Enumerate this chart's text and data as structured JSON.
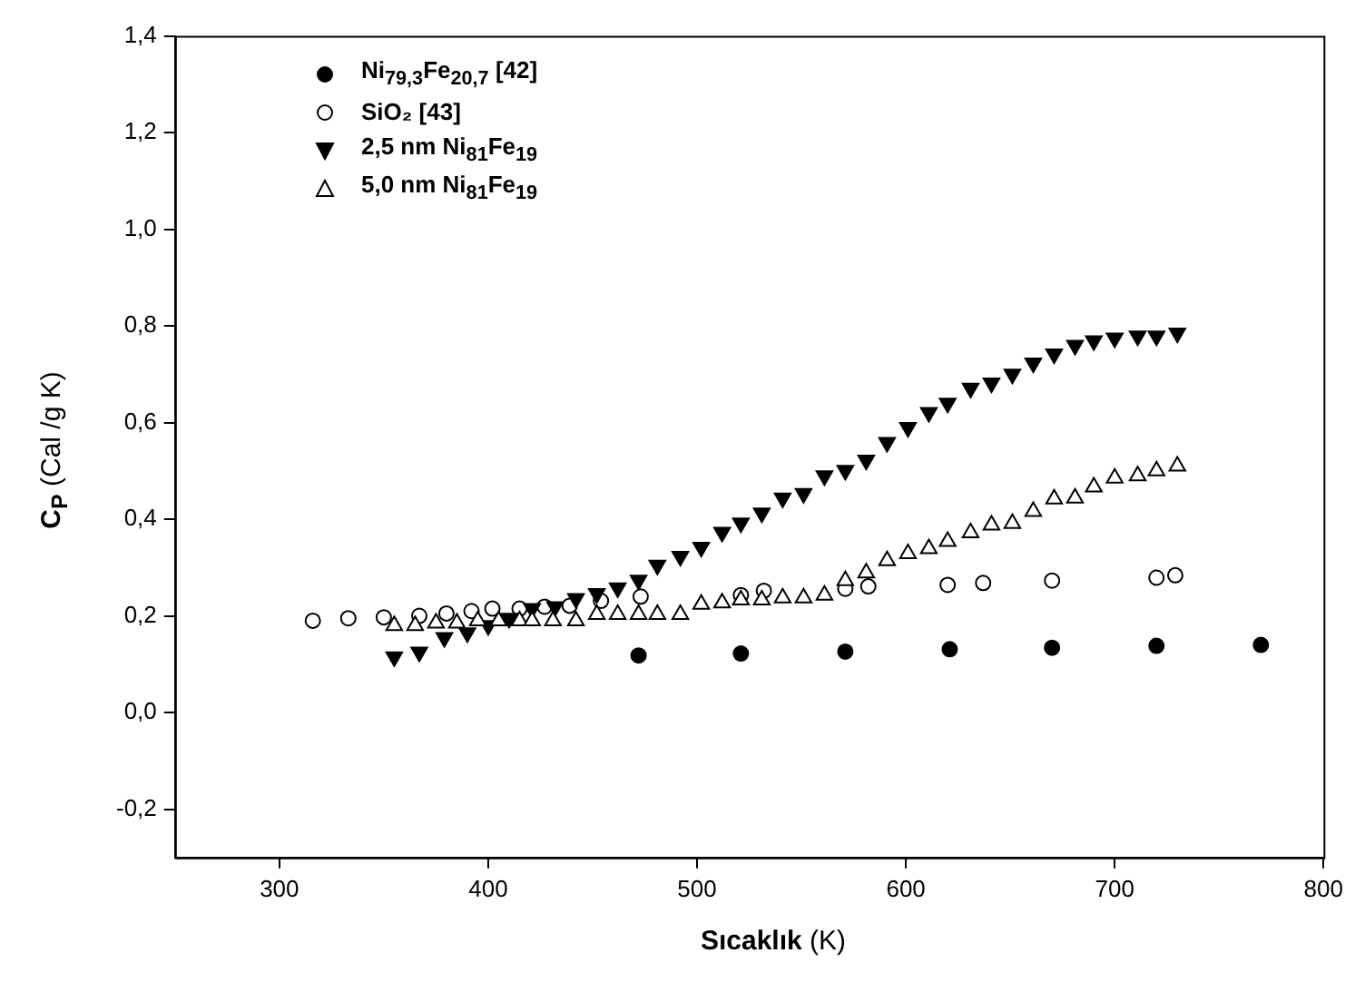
{
  "chart_data": {
    "type": "scatter",
    "xlabel": "Sıcaklık (K)",
    "ylabel": "C$_{P}$ (Cal /g K)",
    "xlim": [
      250,
      800
    ],
    "xticks": [
      300,
      400,
      500,
      600,
      700,
      800
    ],
    "ylim": [
      -0.3,
      1.4
    ],
    "yticks": [
      {
        "value": -0.2,
        "label": "-0,2"
      },
      {
        "value": 0,
        "label": "0,0"
      },
      {
        "value": 0.2,
        "label": "0,2"
      },
      {
        "value": 0.4,
        "label": "0,4"
      },
      {
        "value": 0.6,
        "label": "0,6"
      },
      {
        "value": 0.8,
        "label": "0,8"
      },
      {
        "value": 1.0,
        "label": "1,0"
      },
      {
        "value": 1.2,
        "label": "1,2"
      },
      {
        "value": 1.4,
        "label": "1,4"
      }
    ],
    "grid": false,
    "legend": "top left",
    "series": [
      {
        "name": "Ni$_{79,3}$Fe$_{20,7}$ [42]",
        "color": "#000000",
        "marker": "circle",
        "x": [
          472,
          521,
          571,
          621,
          670,
          720,
          770
        ],
        "values": [
          0.118,
          0.122,
          0.126,
          0.131,
          0.134,
          0.138,
          0.14
        ]
      },
      {
        "name": "SiO₂ [43]",
        "color": "#000000",
        "marker": "circle-open",
        "x": [
          316,
          333,
          350,
          367,
          380,
          392,
          402,
          415,
          427,
          439,
          454,
          473,
          521,
          532,
          571,
          582,
          620,
          637,
          670,
          720,
          729
        ],
        "values": [
          0.19,
          0.195,
          0.197,
          0.2,
          0.205,
          0.21,
          0.215,
          0.215,
          0.219,
          0.221,
          0.231,
          0.24,
          0.243,
          0.252,
          0.256,
          0.261,
          0.264,
          0.268,
          0.273,
          0.279,
          0.284
        ]
      },
      {
        "name": "2,5 nm Ni$_{81}$Fe$_{19}$",
        "color": "#000000",
        "marker": "triangle-down",
        "x": [
          355,
          367,
          379,
          390,
          400,
          410,
          421,
          432,
          442,
          452,
          462,
          472,
          481,
          492,
          502,
          512,
          521,
          531,
          541,
          551,
          561,
          571,
          581,
          591,
          601,
          611,
          620,
          631,
          641,
          651,
          661,
          671,
          681,
          690,
          700,
          711,
          720,
          730
        ],
        "values": [
          0.115,
          0.125,
          0.155,
          0.165,
          0.18,
          0.195,
          0.215,
          0.219,
          0.236,
          0.246,
          0.258,
          0.274,
          0.305,
          0.323,
          0.342,
          0.373,
          0.392,
          0.413,
          0.444,
          0.453,
          0.49,
          0.501,
          0.522,
          0.559,
          0.59,
          0.621,
          0.64,
          0.671,
          0.682,
          0.7,
          0.723,
          0.742,
          0.76,
          0.769,
          0.775,
          0.779,
          0.779,
          0.785
        ]
      },
      {
        "name": "5,0 nm Ni$_{81}$Fe$_{19}$",
        "color": "#000000",
        "marker": "triangle-open",
        "x": [
          355,
          365,
          375,
          385,
          395,
          405,
          415,
          421,
          431,
          442,
          452,
          462,
          472,
          481,
          492,
          502,
          512,
          521,
          531,
          541,
          551,
          561,
          571,
          581,
          591,
          601,
          611,
          620,
          631,
          641,
          651,
          661,
          671,
          681,
          690,
          700,
          711,
          720,
          730
        ],
        "values": [
          0.18,
          0.18,
          0.185,
          0.185,
          0.19,
          0.19,
          0.19,
          0.19,
          0.19,
          0.19,
          0.203,
          0.203,
          0.203,
          0.203,
          0.203,
          0.224,
          0.227,
          0.233,
          0.233,
          0.237,
          0.237,
          0.243,
          0.273,
          0.289,
          0.314,
          0.329,
          0.339,
          0.354,
          0.372,
          0.388,
          0.391,
          0.416,
          0.442,
          0.444,
          0.467,
          0.485,
          0.49,
          0.5,
          0.51
        ]
      }
    ]
  }
}
